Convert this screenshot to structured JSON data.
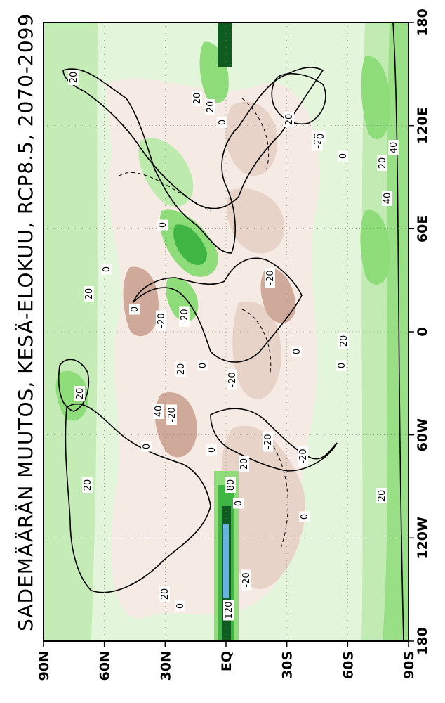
{
  "title": "SADEMÄÄRÄN MUUTOS, KESÄ-ELOKUU, RCP8.5, 2070-2099",
  "longitude_ticks": [
    "180",
    "120E",
    "60E",
    "0",
    "60W",
    "120W",
    "180"
  ],
  "latitude_ticks": [
    "90N",
    "60N",
    "30N",
    "EQ",
    "30S",
    "60S",
    "90S"
  ],
  "contour_labels": [
    "20",
    "20",
    "20",
    "20",
    "20",
    "0",
    "20",
    "-20",
    "0",
    "20",
    "40",
    "40",
    "0",
    "0",
    "-20",
    "0",
    "-20",
    "-20",
    "20",
    "0",
    "20",
    "0",
    "-20",
    "0",
    "20",
    "40",
    "-20",
    "0",
    "0",
    "-20",
    "-20",
    "20",
    "80",
    "20",
    "0",
    "0",
    "20",
    "0",
    "120",
    "-20",
    "0"
  ],
  "colors": {
    "strong_decrease": "#cfa99a",
    "decrease": "#e8d3c8",
    "slight_decrease": "#f6ebe4",
    "slight_increase": "#e3f6dc",
    "increase": "#bdeaad",
    "strong_increase": "#8edc7a",
    "very_strong_increase": "#3fb544",
    "extreme_increase": "#0f5c21",
    "extreme_peak": "#66b1e6",
    "coastline": "#000000"
  },
  "legend": "none",
  "grid": true
}
